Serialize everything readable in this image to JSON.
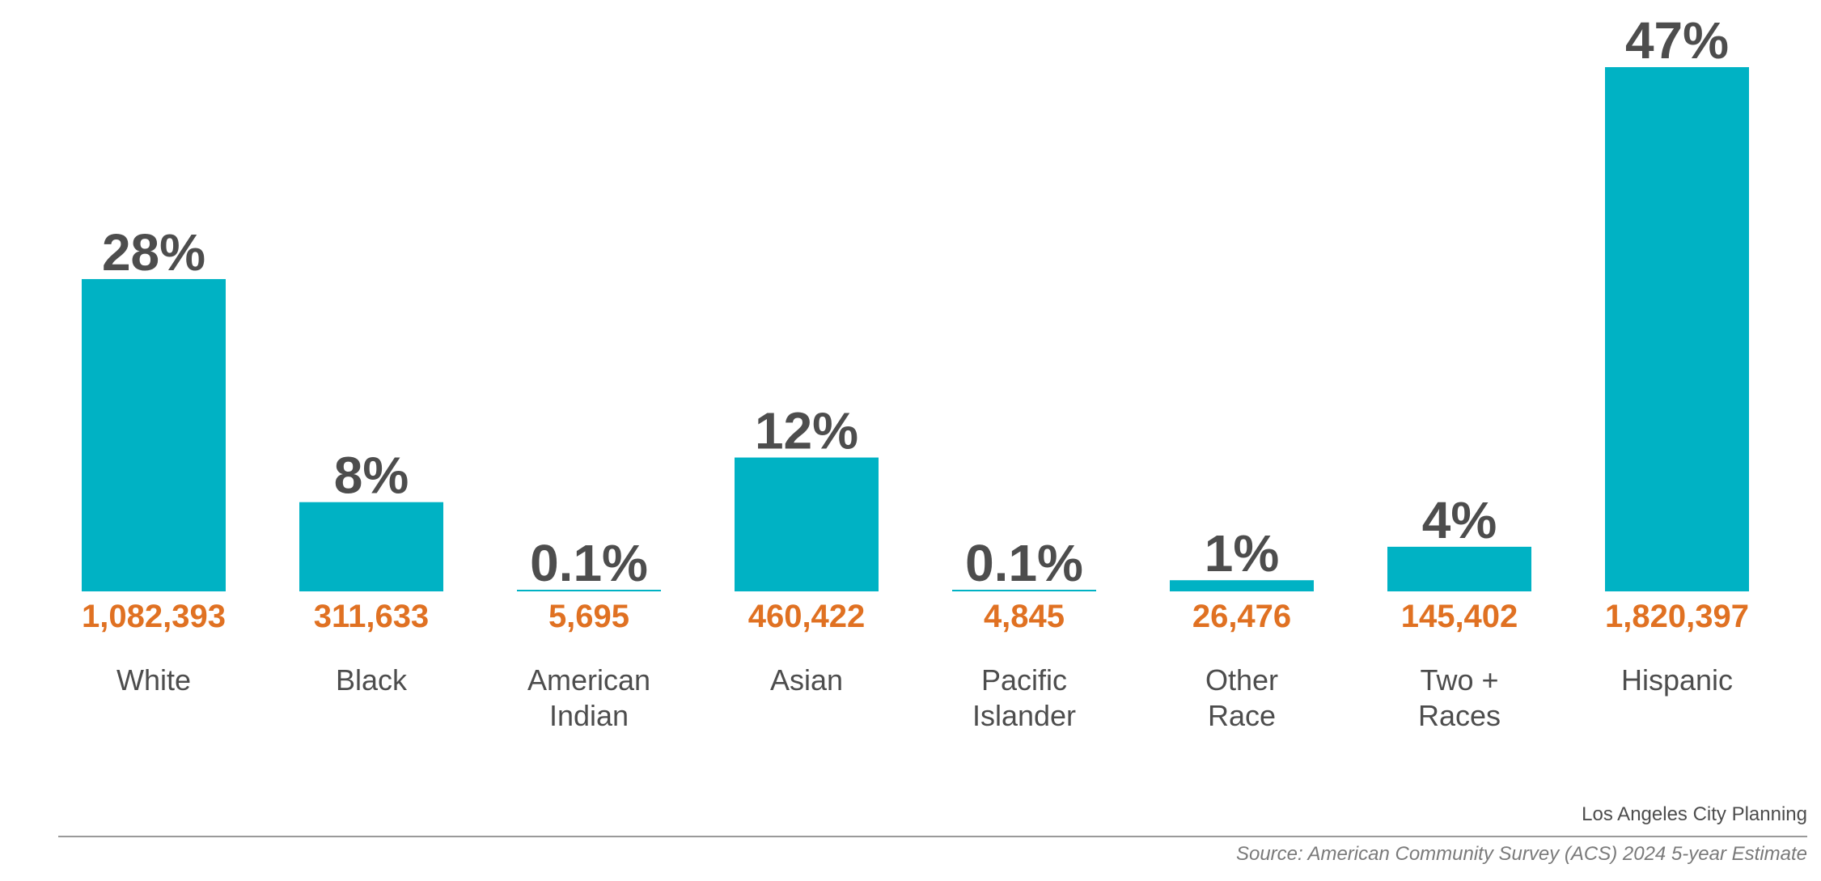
{
  "chart_data": {
    "type": "bar",
    "categories": [
      "White",
      "Black",
      "American Indian",
      "Asian",
      "Pacific Islander",
      "Other Race",
      "Two + Races",
      "Hispanic"
    ],
    "category_lines": [
      [
        "White"
      ],
      [
        "Black"
      ],
      [
        "American",
        "Indian"
      ],
      [
        "Asian"
      ],
      [
        "Pacific",
        "Islander"
      ],
      [
        "Other",
        "Race"
      ],
      [
        "Two +",
        "Races"
      ],
      [
        "Hispanic"
      ]
    ],
    "values": [
      28,
      8,
      0.1,
      12,
      0.1,
      1,
      4,
      47
    ],
    "percent_labels": [
      "28%",
      "8%",
      "0.1%",
      "12%",
      "0.1%",
      "1%",
      "4%",
      "47%"
    ],
    "count_labels": [
      "1,082,393",
      "311,633",
      "5,695",
      "460,422",
      "4,845",
      "26,476",
      "145,402",
      "1,820,397"
    ],
    "counts": [
      1082393,
      311633,
      5695,
      460422,
      4845,
      26476,
      145402,
      1820397
    ],
    "ylim": [
      0,
      47
    ],
    "grid": false,
    "legend": "none",
    "title": "",
    "xlabel": "",
    "ylabel": ""
  },
  "colors": {
    "bar": "#00b2c4",
    "percent_label": "#4d4d4d",
    "count_label": "#e07122",
    "category_label": "#4d4d4d"
  },
  "footer": {
    "credit": "Los Angeles City Planning",
    "source": "Source: American Community Survey (ACS) 2024 5-year Estimate"
  }
}
